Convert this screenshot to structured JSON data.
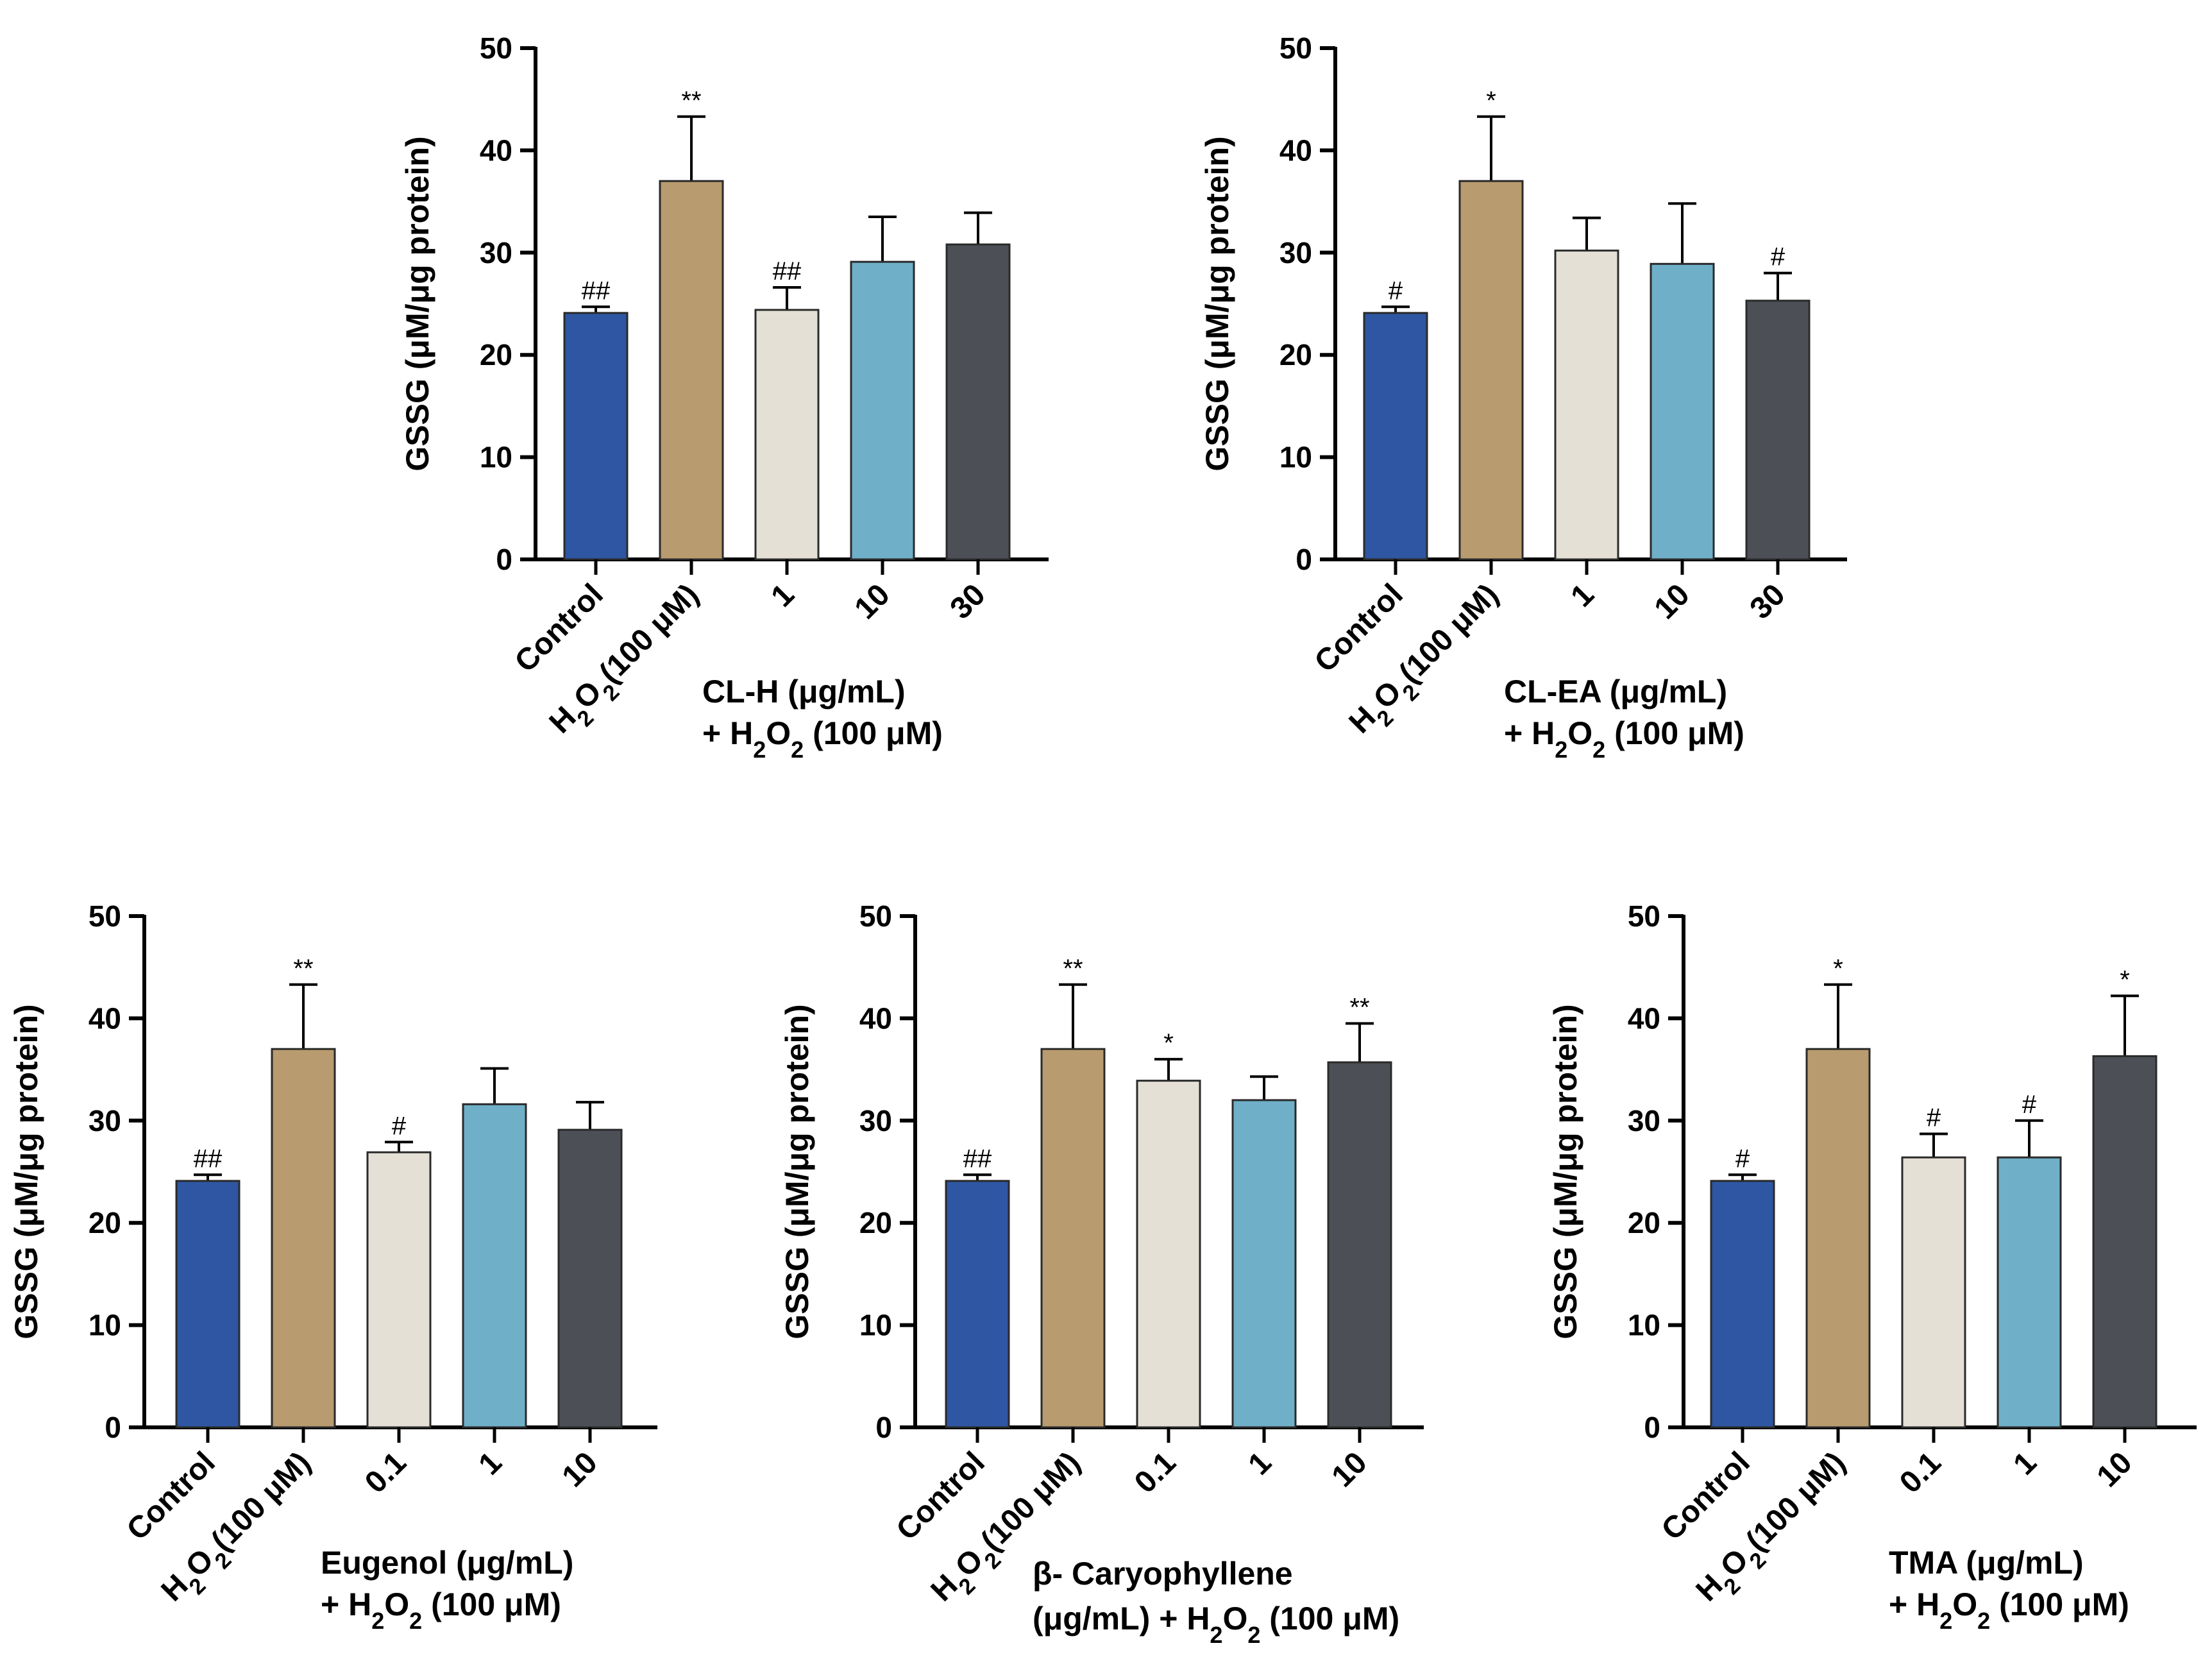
{
  "colors": {
    "control": "#2E56A2",
    "h2o2": "#B89B6E",
    "dose_low": "#E4E0D6",
    "dose_mid": "#6FAFC8",
    "dose_high": "#4C5056"
  },
  "chart_data": [
    {
      "type": "bar",
      "ylabel": "GSSG (μM/μg protein)",
      "ylim": [
        0,
        50
      ],
      "yticks": [
        0,
        10,
        20,
        30,
        40,
        50
      ],
      "categories": [
        "Control",
        "H2O2(100 μM)",
        "1",
        "10",
        "30"
      ],
      "values": [
        24.1,
        37.0,
        24.4,
        29.1,
        30.8
      ],
      "errors": [
        0.6,
        6.3,
        2.2,
        4.4,
        3.1
      ],
      "significance": [
        "##",
        "**",
        "##",
        "",
        ""
      ],
      "group_label": [
        "CL-H (μg/mL)",
        "+ H2O2 (100 μM)"
      ]
    },
    {
      "type": "bar",
      "ylabel": "GSSG (μM/μg protein)",
      "ylim": [
        0,
        50
      ],
      "yticks": [
        0,
        10,
        20,
        30,
        40,
        50
      ],
      "categories": [
        "Control",
        "H2O2(100 μM)",
        "1",
        "10",
        "30"
      ],
      "values": [
        24.1,
        37.0,
        30.2,
        28.9,
        25.3
      ],
      "errors": [
        0.6,
        6.3,
        3.2,
        5.9,
        2.7
      ],
      "significance": [
        "#",
        "*",
        "",
        "",
        "#"
      ],
      "group_label": [
        "CL-EA (μg/mL)",
        "+ H2O2 (100 μM)"
      ]
    },
    {
      "type": "bar",
      "ylabel": "GSSG (μM/μg protein)",
      "ylim": [
        0,
        50
      ],
      "yticks": [
        0,
        10,
        20,
        30,
        40,
        50
      ],
      "categories": [
        "Control",
        "H2O2(100 μM)",
        "0.1",
        "1",
        "10"
      ],
      "values": [
        24.1,
        37.0,
        26.9,
        31.6,
        29.1
      ],
      "errors": [
        0.6,
        6.3,
        1.0,
        3.5,
        2.7
      ],
      "significance": [
        "##",
        "**",
        "#",
        "",
        ""
      ],
      "group_label": [
        "Eugenol (μg/mL)",
        "+ H2O2 (100 μM)"
      ]
    },
    {
      "type": "bar",
      "ylabel": "GSSG (μM/μg protein)",
      "ylim": [
        0,
        50
      ],
      "yticks": [
        0,
        10,
        20,
        30,
        40,
        50
      ],
      "categories": [
        "Control",
        "H2O2(100 μM)",
        "0.1",
        "1",
        "10"
      ],
      "values": [
        24.1,
        37.0,
        33.9,
        32.0,
        35.7
      ],
      "errors": [
        0.6,
        6.3,
        2.1,
        2.3,
        3.8
      ],
      "significance": [
        "##",
        "**",
        "*",
        "",
        "**"
      ],
      "group_label": [
        "β- Caryophyllene",
        "(μg/mL) + H2O2 (100 μM)"
      ]
    },
    {
      "type": "bar",
      "ylabel": "GSSG (μM/μg protein)",
      "ylim": [
        0,
        50
      ],
      "yticks": [
        0,
        10,
        20,
        30,
        40,
        50
      ],
      "categories": [
        "Control",
        "H2O2(100 μM)",
        "0.1",
        "1",
        "10"
      ],
      "values": [
        24.1,
        37.0,
        26.4,
        26.4,
        36.3
      ],
      "errors": [
        0.6,
        6.3,
        2.3,
        3.6,
        5.9
      ],
      "significance": [
        "#",
        "*",
        "#",
        "#",
        "*"
      ],
      "group_label": [
        "TMA (μg/mL)",
        "+ H2O2 (100 μM)"
      ]
    }
  ]
}
